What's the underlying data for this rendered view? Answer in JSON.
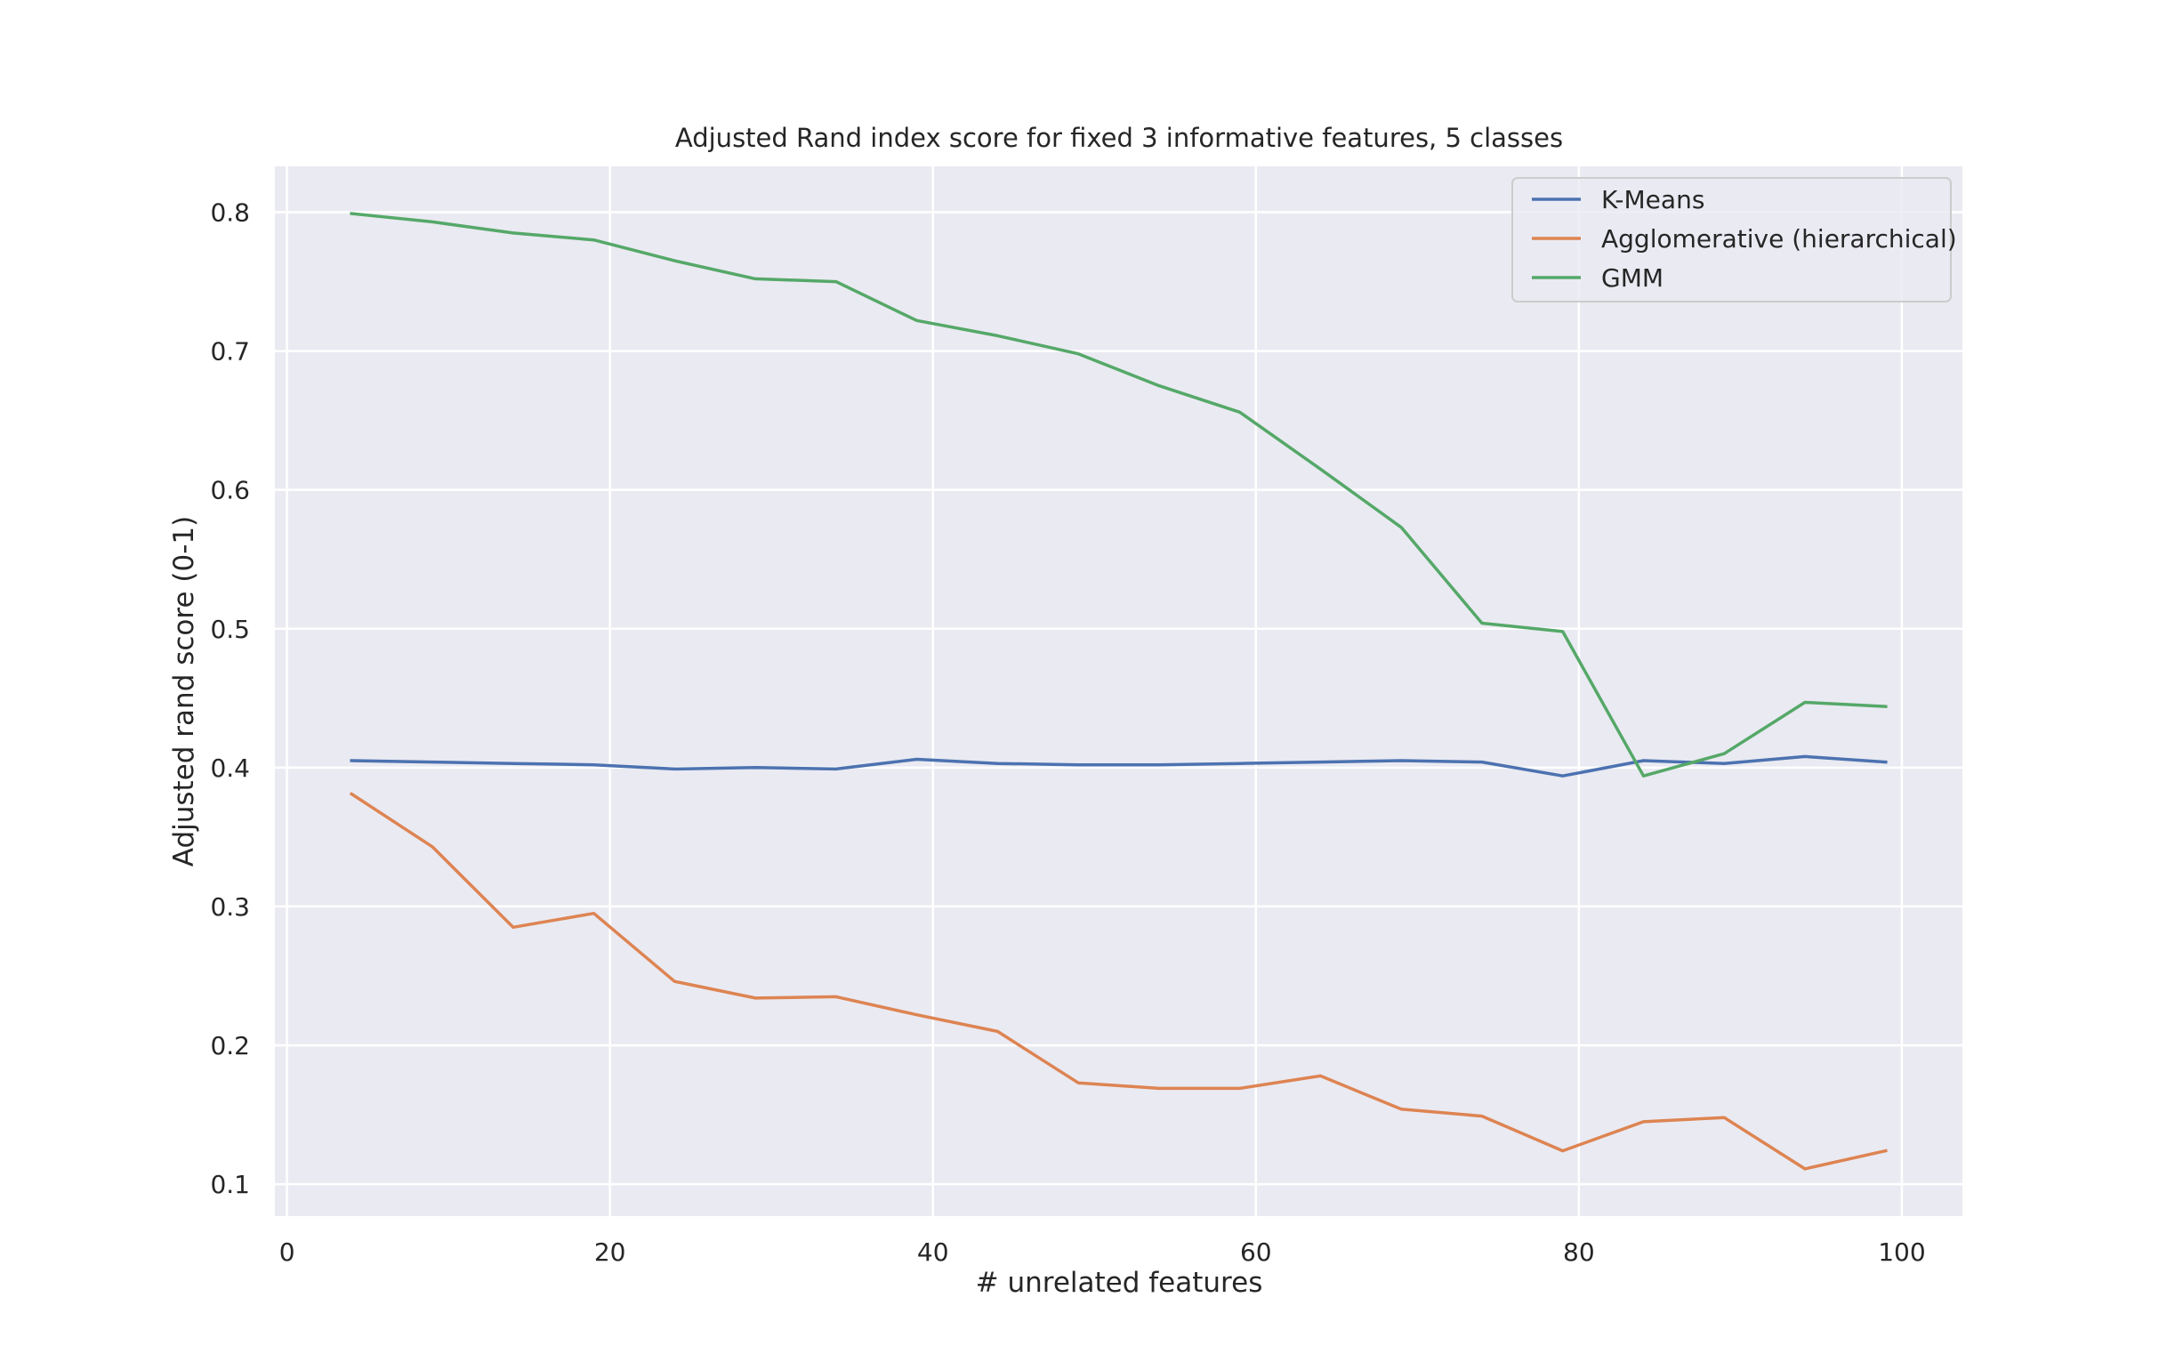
{
  "chart_data": {
    "type": "line",
    "title": "Adjusted Rand index score for fixed 3 informative features, 5 classes",
    "xlabel": "# unrelated features",
    "ylabel": "Adjusted rand score (0-1)",
    "xlim": [
      -0.75,
      103.75
    ],
    "ylim": [
      0.077,
      0.833
    ],
    "xticks": [
      0,
      20,
      40,
      60,
      80,
      100
    ],
    "xtick_labels": [
      "0",
      "20",
      "40",
      "60",
      "80",
      "100"
    ],
    "yticks": [
      0.1,
      0.2,
      0.3,
      0.4,
      0.5,
      0.6,
      0.7,
      0.8
    ],
    "ytick_labels": [
      "0.1",
      "0.2",
      "0.3",
      "0.4",
      "0.5",
      "0.6",
      "0.7",
      "0.8"
    ],
    "grid": true,
    "legend_position": "top-right",
    "x": [
      4,
      9,
      14,
      19,
      24,
      29,
      34,
      39,
      44,
      49,
      54,
      59,
      64,
      69,
      74,
      79,
      84,
      89,
      94,
      99
    ],
    "series": [
      {
        "name": "K-Means",
        "color": "#4c72b0",
        "values": [
          0.405,
          0.404,
          0.403,
          0.402,
          0.399,
          0.4,
          0.399,
          0.406,
          0.403,
          0.402,
          0.402,
          0.403,
          0.404,
          0.405,
          0.404,
          0.394,
          0.405,
          0.403,
          0.408,
          0.404
        ]
      },
      {
        "name": "Agglomerative (hierarchical)",
        "color": "#dd8452",
        "values": [
          0.381,
          0.343,
          0.285,
          0.295,
          0.246,
          0.234,
          0.235,
          0.222,
          0.21,
          0.173,
          0.169,
          0.169,
          0.178,
          0.154,
          0.149,
          0.124,
          0.145,
          0.148,
          0.111,
          0.124
        ]
      },
      {
        "name": "GMM",
        "color": "#55a868",
        "values": [
          0.799,
          0.793,
          0.785,
          0.78,
          0.765,
          0.752,
          0.75,
          0.722,
          0.711,
          0.698,
          0.675,
          0.656,
          0.615,
          0.573,
          0.504,
          0.498,
          0.394,
          0.41,
          0.447,
          0.444
        ]
      }
    ]
  }
}
